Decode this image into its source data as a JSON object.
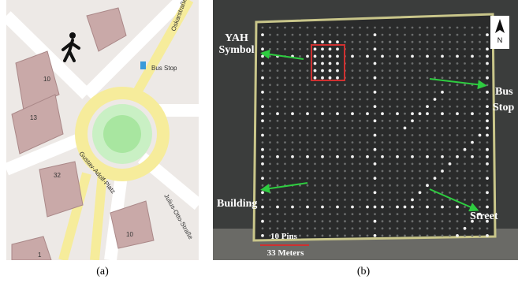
{
  "panel_a": {
    "caption": "(a)",
    "streets": [
      "Oskarstraße",
      "Gustav-Adolf-Platz",
      "Julius-Otto-Straße"
    ],
    "bus_stop": "Bus Stop",
    "house_numbers": [
      "10",
      "13",
      "32",
      "10",
      "1"
    ]
  },
  "panel_b": {
    "caption": "(b)",
    "north": "N",
    "yah_label": [
      "YAH",
      "Symbol"
    ],
    "bus_stop_label": [
      "Bus",
      "Stop"
    ],
    "building_label": "Building",
    "street_label": "Street",
    "scale_pins": "10 Pins",
    "scale_meters": "33 Meters"
  }
}
